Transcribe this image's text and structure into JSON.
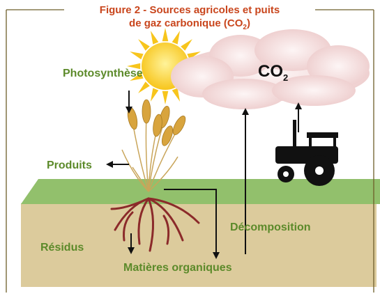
{
  "title": {
    "line1": "Figure 2  - Sources agricoles et puits",
    "line2": "de gaz carbonique (CO",
    "line2_sub": "2",
    "line2_end": ")"
  },
  "cloud": {
    "label": "CO",
    "label_sub": "2"
  },
  "labels": {
    "photosynthesis": "Photosynthèse",
    "products": "Produits",
    "decomposition": "Décomposition",
    "residues": "Résidus",
    "organic_matter": "Matières organiques"
  }
}
